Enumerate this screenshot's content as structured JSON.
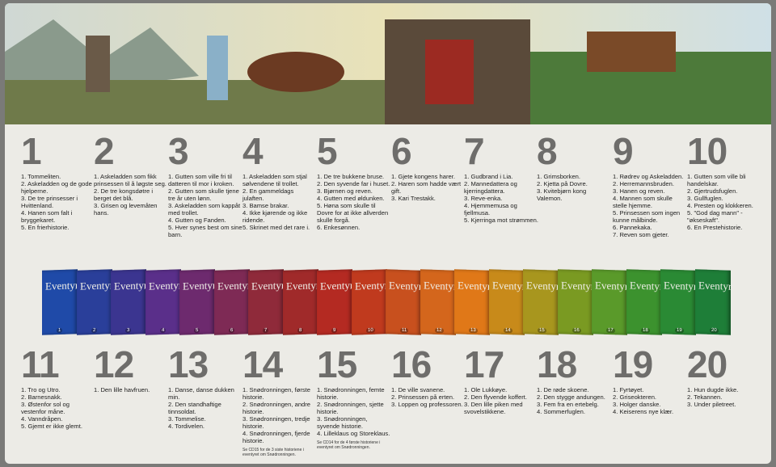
{
  "spine_label": "Eventyr",
  "volumes": [
    {
      "number": "1",
      "items": [
        "1. Tommeliten.",
        "2. Askeladden og de gode hjelperne.",
        "3. De tre prinsesser i Hvittenland.",
        "4. Hanen som falt i bryggekaret.",
        "5. En frierhistorie."
      ]
    },
    {
      "number": "2",
      "items": [
        "1. Askeladden som fikk prinsessen til å løgste seg.",
        "2. De tre kongsdøtre i berget det blå.",
        "3. Grisen og levemåten hans."
      ]
    },
    {
      "number": "3",
      "items": [
        "1. Gutten som ville fri til datteren til mor i kroken.",
        "2. Gutten som skulle tjene tre år uten lønn.",
        "3. Askeladden som kappåt med trollet.",
        "4. Gutten og Fanden.",
        "5. Hver synes best om sine barn."
      ]
    },
    {
      "number": "4",
      "items": [
        "1. Askeladden som stjal sølvendene til trollet.",
        "2. En gammeldags julaften.",
        "3. Bamse brakar.",
        "4. Ikke kjørende og ikke ridende.",
        "5. Skrinet med det rare i."
      ]
    },
    {
      "number": "5",
      "items": [
        "1. De tre bukkene bruse.",
        "2. Den syvende far i huset.",
        "3. Bjørnen og reven.",
        "4. Gutten med øldunken.",
        "5. Høna som skulle til Dovre for at ikke allverden skulle forgå.",
        "6. Enkesønnen."
      ]
    },
    {
      "number": "6",
      "items": [
        "1. Gjete kongens harer.",
        "2. Haren som hadde vært gift.",
        "3. Kari Trestakk."
      ]
    },
    {
      "number": "7",
      "items": [
        "1. Gudbrand i Lia.",
        "2. Mannedattera og kjerringdattera.",
        "3. Reve-enka.",
        "4. Hjemmemusa og fjellmusa.",
        "5. Kjerringa mot strømmen."
      ]
    },
    {
      "number": "8",
      "items": [
        "1. Grimsborken.",
        "2. Kjetta på Dovre.",
        "3. Kvitebjørn kong Valemon."
      ]
    },
    {
      "number": "9",
      "items": [
        "1. Rødrev og Askeladden.",
        "2. Herremannsbruden.",
        "3. Hanen og reven.",
        "4. Mannen som skulle stelle hjemme.",
        "5. Prinsessen som ingen kunne målbinde.",
        "6. Pannekaka.",
        "7. Reven som gjeter."
      ]
    },
    {
      "number": "10",
      "items": [
        "1. Gutten som ville bli handelskar.",
        "2. Gjertrudsfuglen.",
        "3. Gullfuglen.",
        "4. Presten og klokkeren.",
        "5. \"God dag mann\" - \"økseskaft\".",
        "6. En Prestehistorie."
      ]
    },
    {
      "number": "11",
      "items": [
        "1. Tro og Utro.",
        "2. Barnesnakk.",
        "3. Østenfor sol og vestenfor måne.",
        "4. Vanndråpen.",
        "5. Gjemt er ikke glemt."
      ]
    },
    {
      "number": "12",
      "items": [
        "1. Den lille havfruen."
      ]
    },
    {
      "number": "13",
      "items": [
        "1. Danse, danse dukken min.",
        "2. Den standhaftige tinnsoldat.",
        "3. Tommelise.",
        "4. Tordivelen."
      ]
    },
    {
      "number": "14",
      "items": [
        "1. Snødronningen, første historie.",
        "2. Snødronningen, andre historie.",
        "3. Snødronningen, tredje historie.",
        "4. Snødronningen, fjerde historie."
      ],
      "note": "Se CD15 for de 3 siste historiene i eventyret om Snødronningen."
    },
    {
      "number": "15",
      "items": [
        "1. Snødronningen, femte historie.",
        "2. Snødronningen, sjette historie.",
        "3. Snødronningen, syvende historie.",
        "4. Lilleklaus og Storeklaus."
      ],
      "note": "Se CD14 for de 4 første historiene i eventyret om Snødronningen."
    },
    {
      "number": "16",
      "items": [
        "1. De ville svanene.",
        "2. Prinsessen på erten.",
        "3. Loppen og professoren."
      ]
    },
    {
      "number": "17",
      "items": [
        "1. Ole Lukkøye.",
        "2. Den flyvende koffert.",
        "3. Den lille piken med svovelstikkene."
      ]
    },
    {
      "number": "18",
      "items": [
        "1. De røde skoene.",
        "2. Den stygge andungen.",
        "3. Fem fra en ertebelg.",
        "4. Sommerfuglen."
      ]
    },
    {
      "number": "19",
      "items": [
        "1. Fyrtøyet.",
        "2. Griseokteren.",
        "3. Holger danske.",
        "4. Keiserens nye klær."
      ]
    },
    {
      "number": "20",
      "items": [
        "1. Hun dugde ikke.",
        "2. Tekannen.",
        "3. Under piletreet."
      ]
    }
  ]
}
